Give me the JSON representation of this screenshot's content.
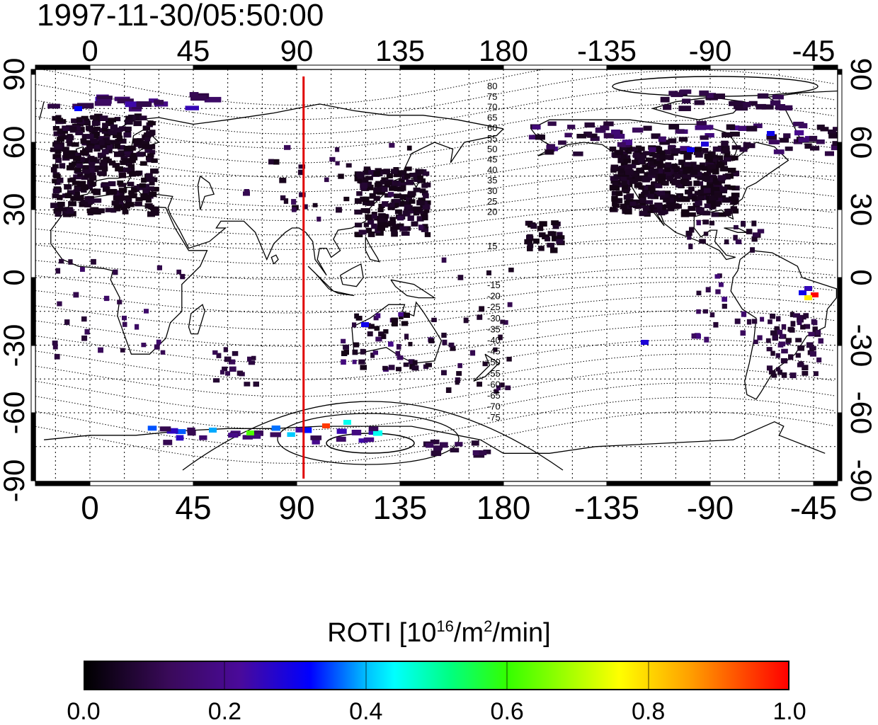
{
  "timestamp": "1997-11-30/05:50:00",
  "map": {
    "longitude_ticks": [
      "0",
      "45",
      "90",
      "135",
      "180",
      "-135",
      "-90",
      "-45"
    ],
    "latitude_ticks": [
      "90",
      "60",
      "30",
      "0",
      "-30",
      "-60",
      "-90"
    ],
    "marker_longitude": 93,
    "marker_color": "#e00000",
    "contour_labels_north": [
      "80",
      "75",
      "70",
      "65",
      "60",
      "55",
      "50",
      "45",
      "40",
      "35",
      "30",
      "25",
      "20",
      "15"
    ],
    "contour_labels_south": [
      "-15",
      "-20",
      "-25",
      "-30",
      "-35",
      "-40",
      "-45",
      "-50",
      "-55",
      "-60",
      "-65",
      "-70",
      "-75"
    ]
  },
  "colorbar": {
    "title_main": "ROTI  [10",
    "title_sup1": "16",
    "title_mid": "/m",
    "title_sup2": "2",
    "title_end": "/min]",
    "ticks": [
      "0.0",
      "0.2",
      "0.4",
      "0.6",
      "0.8",
      "1.0"
    ],
    "range": [
      0.0,
      1.0
    ]
  }
}
